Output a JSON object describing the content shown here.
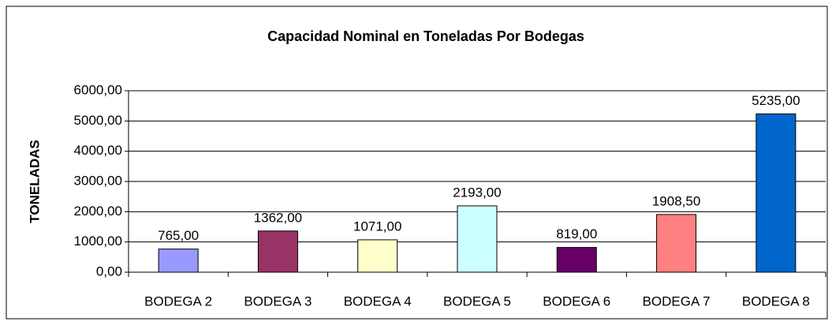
{
  "chart_data": {
    "type": "bar",
    "title": "Capacidad Nominal en Toneladas Por Bodegas",
    "y_label": "TONELADAS",
    "categories": [
      "BODEGA 2",
      "BODEGA 3",
      "BODEGA 4",
      "BODEGA 5",
      "BODEGA 6",
      "BODEGA 7",
      "BODEGA 8"
    ],
    "values": [
      765,
      1362,
      1071,
      2193,
      819,
      1908.5,
      5235
    ],
    "value_labels": [
      "765,00",
      "1362,00",
      "1071,00",
      "2193,00",
      "819,00",
      "1908,50",
      "5235,00"
    ],
    "colors": [
      "#9999ff",
      "#993366",
      "#ffffcc",
      "#ccffff",
      "#660066",
      "#ff8080",
      "#0066cc"
    ],
    "ylim": [
      0,
      6000
    ],
    "yticks": [
      {
        "value": 0,
        "label": "0,00"
      },
      {
        "value": 1000,
        "label": "1000,00"
      },
      {
        "value": 2000,
        "label": "2000,00"
      },
      {
        "value": 3000,
        "label": "3000,00"
      },
      {
        "value": 4000,
        "label": "4000,00"
      },
      {
        "value": 5000,
        "label": "5000,00"
      },
      {
        "value": 6000,
        "label": "6000,00"
      }
    ],
    "grid": true
  }
}
